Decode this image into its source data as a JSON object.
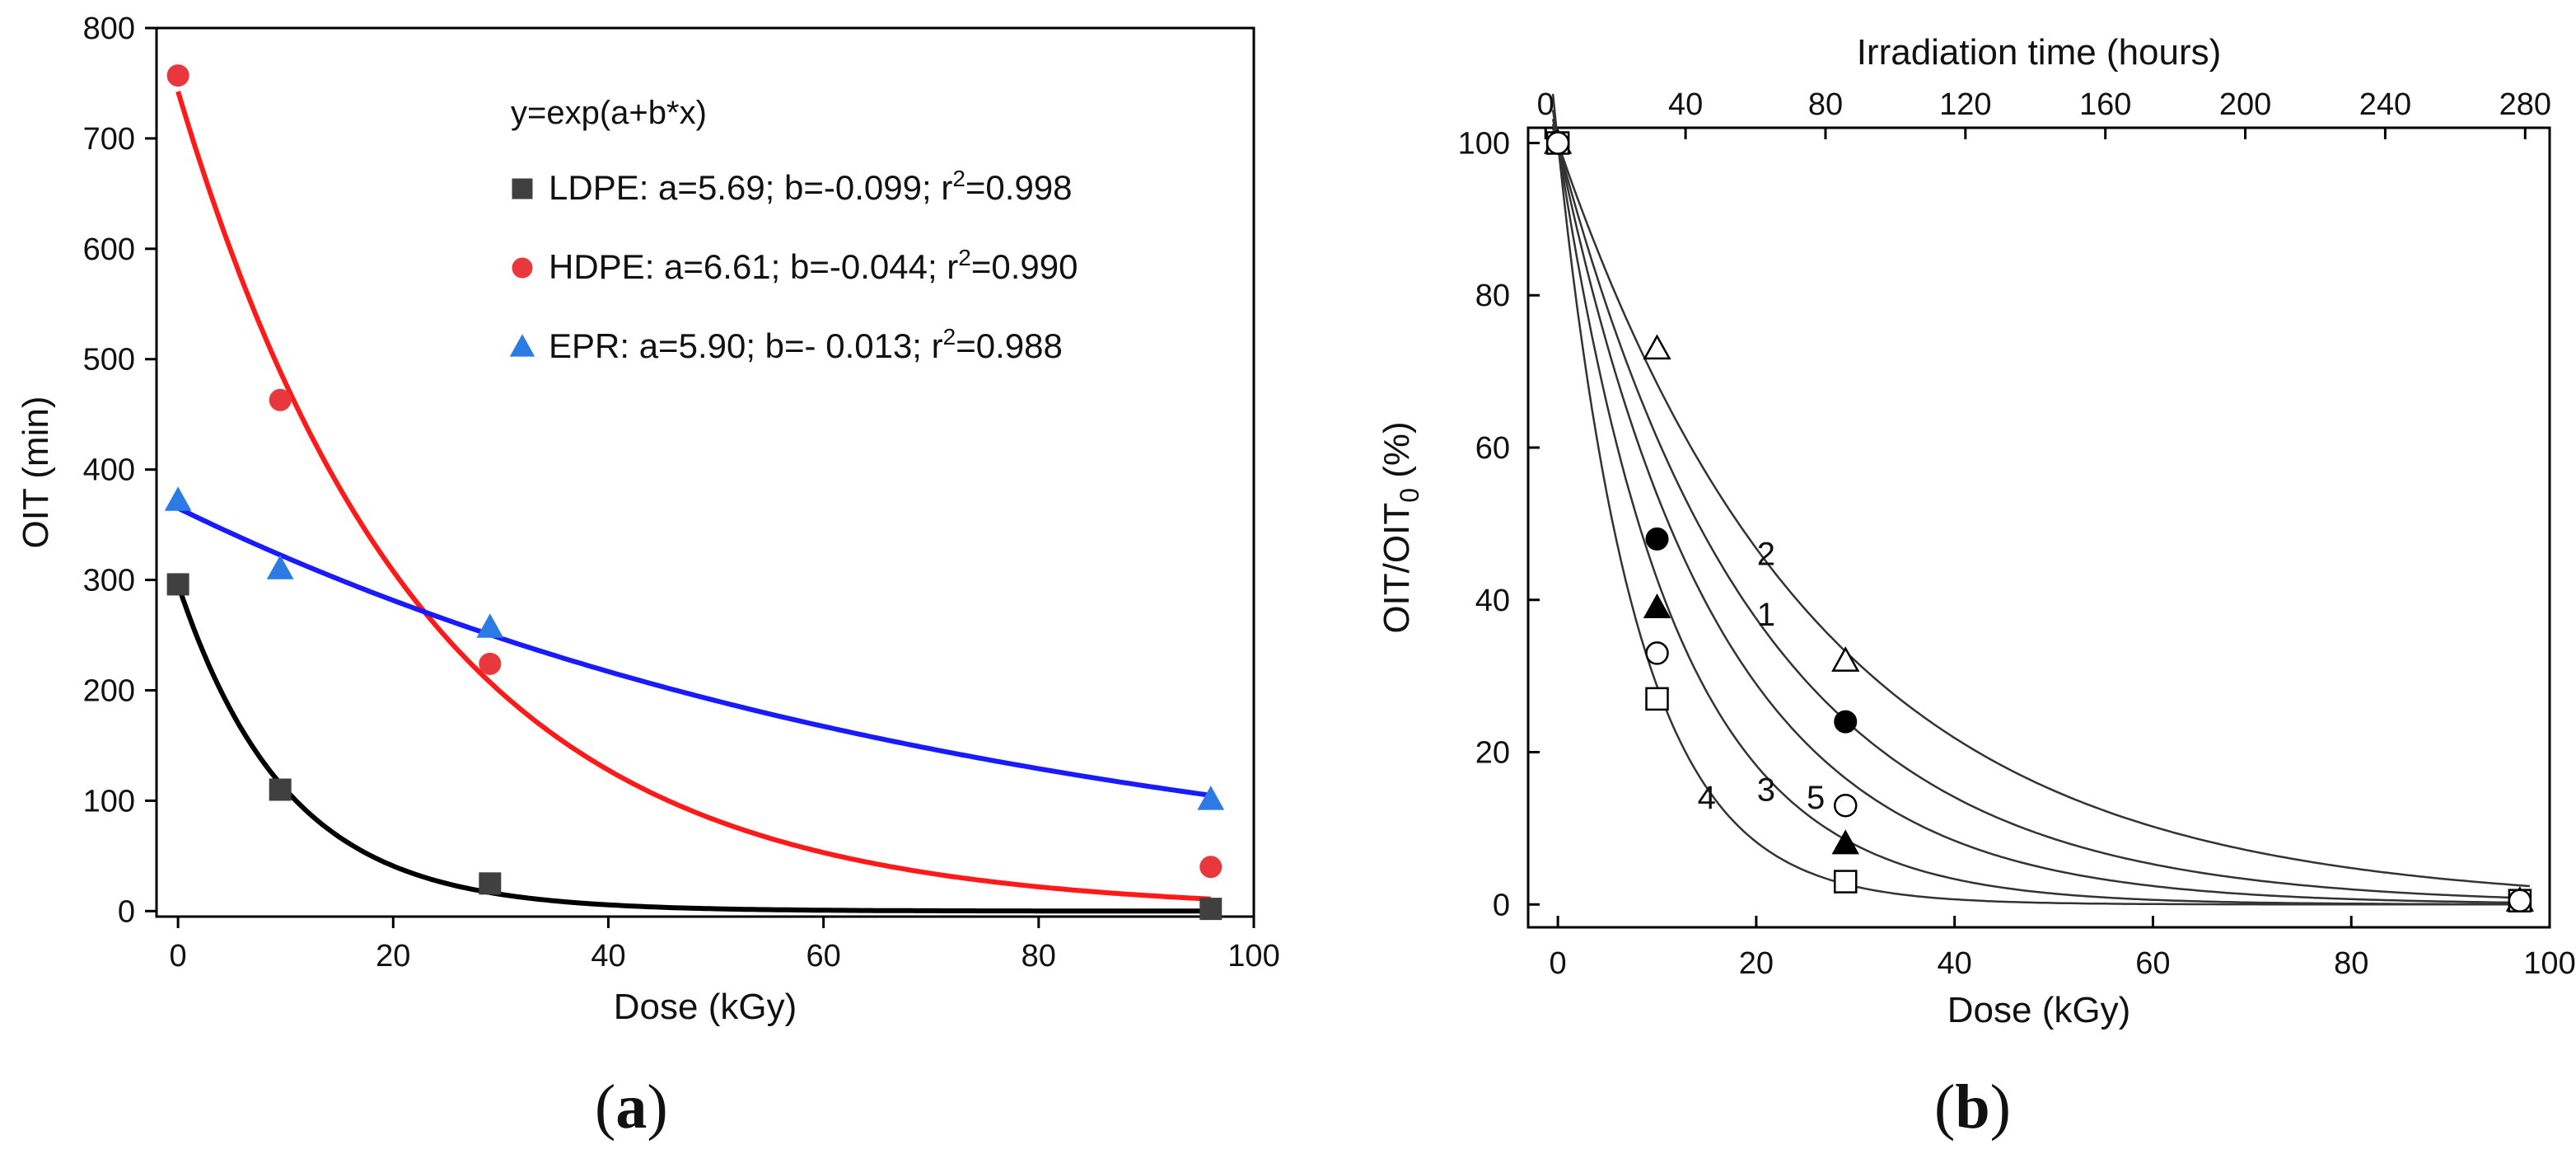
{
  "panel_labels": [
    "a",
    "b"
  ],
  "chart_data": [
    {
      "type": "scatter",
      "title": "",
      "xlabel": "Dose (kGy)",
      "ylabel": "OIT (min)",
      "xlim": [
        -2,
        100
      ],
      "ylim": [
        -5,
        800
      ],
      "x_ticks": [
        0,
        20,
        40,
        60,
        80,
        100
      ],
      "y_ticks": [
        0,
        100,
        200,
        300,
        400,
        500,
        600,
        700,
        800
      ],
      "grid": false,
      "legend_position": "top-right",
      "fit_equation": "y=exp(a+b*x)",
      "series": [
        {
          "name": "LDPE",
          "marker": "square",
          "color": "#404040",
          "legend": {
            "prefix": "LDPE: a=5.69; b=-0.099; r",
            "sup": "2",
            "suffix": "=0.998"
          },
          "fit": {
            "a": 5.69,
            "b": -0.099,
            "r2": 0.998
          },
          "x": [
            0,
            9.5,
            29,
            96
          ],
          "y": [
            296,
            110,
            25,
            2
          ]
        },
        {
          "name": "HDPE",
          "marker": "circle",
          "color": "#e8383d",
          "legend": {
            "prefix": "HDPE: a=6.61; b=-0.044; r",
            "sup": "2",
            "suffix": "=0.990"
          },
          "fit": {
            "a": 6.61,
            "b": -0.044,
            "r2": 0.99
          },
          "x": [
            0,
            9.5,
            29,
            96
          ],
          "y": [
            757,
            463,
            224,
            40
          ]
        },
        {
          "name": "EPR",
          "marker": "triangle",
          "color": "#2c7be5",
          "legend": {
            "prefix": "EPR: a=5.90; b=- 0.013; r",
            "sup": "2",
            "suffix": "=0.988"
          },
          "fit": {
            "a": 5.9,
            "b": -0.013,
            "r2": 0.988
          },
          "x": [
            0,
            9.5,
            29,
            96
          ],
          "y": [
            372,
            310,
            257,
            101
          ]
        }
      ],
      "fit_line_colors": {
        "LDPE": "#000000",
        "HDPE": "#ff1a1a",
        "EPR": "#1a1aff"
      }
    },
    {
      "type": "scatter",
      "title": "",
      "xlabel": "Dose (kGy)",
      "ylabel_prefix": "OIT/OIT",
      "ylabel_sub": "0",
      "ylabel_suffix": " (%)",
      "x2label": "Irradiation time (hours)",
      "xlim": [
        -3,
        100
      ],
      "ylim": [
        -3,
        102
      ],
      "x_ticks": [
        0,
        20,
        40,
        60,
        80,
        100
      ],
      "y_ticks": [
        0,
        20,
        40,
        60,
        80,
        100
      ],
      "x2_ticks": [
        0,
        40,
        80,
        120,
        160,
        200,
        240,
        280
      ],
      "x2_range": [
        -5,
        287
      ],
      "grid": false,
      "series": [
        {
          "name": "1",
          "marker": "filled-circle",
          "x": [
            0,
            10,
            29,
            97
          ],
          "y": [
            100,
            48,
            24,
            0.5
          ],
          "k": 0.049,
          "label_at": [
            21,
            38
          ]
        },
        {
          "name": "2",
          "marker": "open-triangle",
          "x": [
            0,
            10,
            29,
            97
          ],
          "y": [
            100,
            73,
            32,
            0.5
          ],
          "k": 0.038,
          "label_at": [
            21,
            46
          ]
        },
        {
          "name": "3",
          "marker": "filled-triangle",
          "x": [
            0,
            10,
            29,
            97
          ],
          "y": [
            100,
            39,
            8,
            0.5
          ],
          "k": 0.085,
          "label_at": [
            21,
            15
          ]
        },
        {
          "name": "4",
          "marker": "open-square",
          "x": [
            0,
            10,
            29,
            97
          ],
          "y": [
            100,
            27,
            3,
            0.5
          ],
          "k": 0.125,
          "label_at": [
            15,
            14
          ]
        },
        {
          "name": "5",
          "marker": "open-circle",
          "x": [
            0,
            10,
            29,
            97
          ],
          "y": [
            100,
            33,
            13,
            0.5
          ],
          "k": 0.062,
          "label_at": [
            26,
            14
          ]
        }
      ]
    }
  ]
}
